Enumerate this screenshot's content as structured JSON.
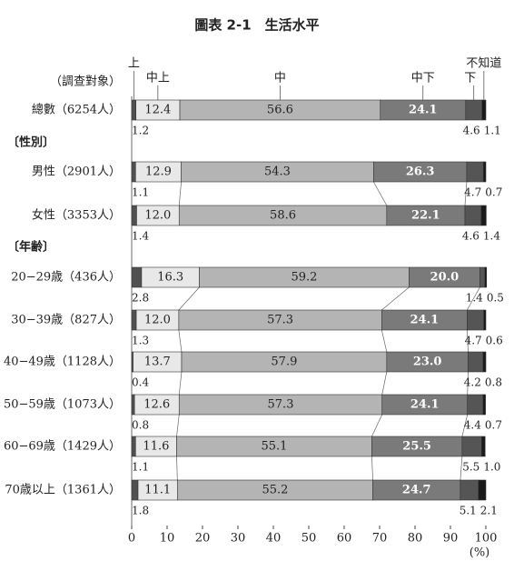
{
  "chart_data": {
    "type": "stacked-bar-horizontal",
    "title": "圖表 2-1　生活水平",
    "categories": [
      "總數（6254人）",
      "男性（2901人）",
      "女性（3353人）",
      "20−29歳（436人）",
      "30−39歳（827人）",
      "40−49歳（1128人）",
      "50−59歳（1073人）",
      "60−69歳（1429人）",
      "70歳以上（1361人）"
    ],
    "group_labels": [
      "（調查對象）",
      "〔性別〕",
      "〔年齢〕"
    ],
    "series": [
      {
        "name": "上",
        "color": "#505050",
        "values": [
          1.2,
          1.1,
          1.4,
          2.8,
          1.3,
          0.4,
          0.8,
          1.1,
          1.8
        ]
      },
      {
        "name": "中上",
        "color": "#e8e8e8",
        "values": [
          12.4,
          12.9,
          12.0,
          16.3,
          12.0,
          13.7,
          12.6,
          11.6,
          11.1
        ],
        "value_labels": [
          "12.4",
          "12.9",
          "12.0",
          "16.3",
          "12.0",
          "13.7",
          "12.6",
          "11.6",
          "11.1"
        ]
      },
      {
        "name": "中",
        "color": "#b4b4b4",
        "values": [
          56.6,
          54.3,
          58.6,
          59.2,
          57.3,
          57.9,
          57.3,
          55.1,
          55.2
        ]
      },
      {
        "name": "中下",
        "color": "#7a7a7a",
        "values": [
          24.1,
          26.3,
          22.1,
          20.0,
          24.1,
          23.0,
          24.1,
          25.5,
          24.7
        ],
        "value_labels": [
          "24.1",
          "26.3",
          "22.1",
          "20.0",
          "24.1",
          "23.0",
          "24.1",
          "25.5",
          "24.7"
        ]
      },
      {
        "name": "下",
        "color": "#555555",
        "values": [
          4.6,
          4.7,
          4.6,
          1.4,
          4.7,
          4.2,
          4.4,
          5.5,
          5.1
        ]
      },
      {
        "name": "不知道",
        "color": "#1a1a1a",
        "values": [
          1.1,
          0.7,
          1.4,
          0.5,
          0.6,
          0.8,
          0.7,
          1.0,
          2.1
        ],
        "value_labels": [
          "1.1",
          "0.7",
          "1.4",
          "0.5",
          "0.6",
          "0.8",
          "0.7",
          "1.0",
          "2.1"
        ]
      }
    ],
    "xlim": [
      0,
      100
    ],
    "xticks": [
      0,
      10,
      20,
      30,
      40,
      50,
      60,
      70,
      80,
      90,
      100
    ],
    "xlabel": "(%)"
  }
}
